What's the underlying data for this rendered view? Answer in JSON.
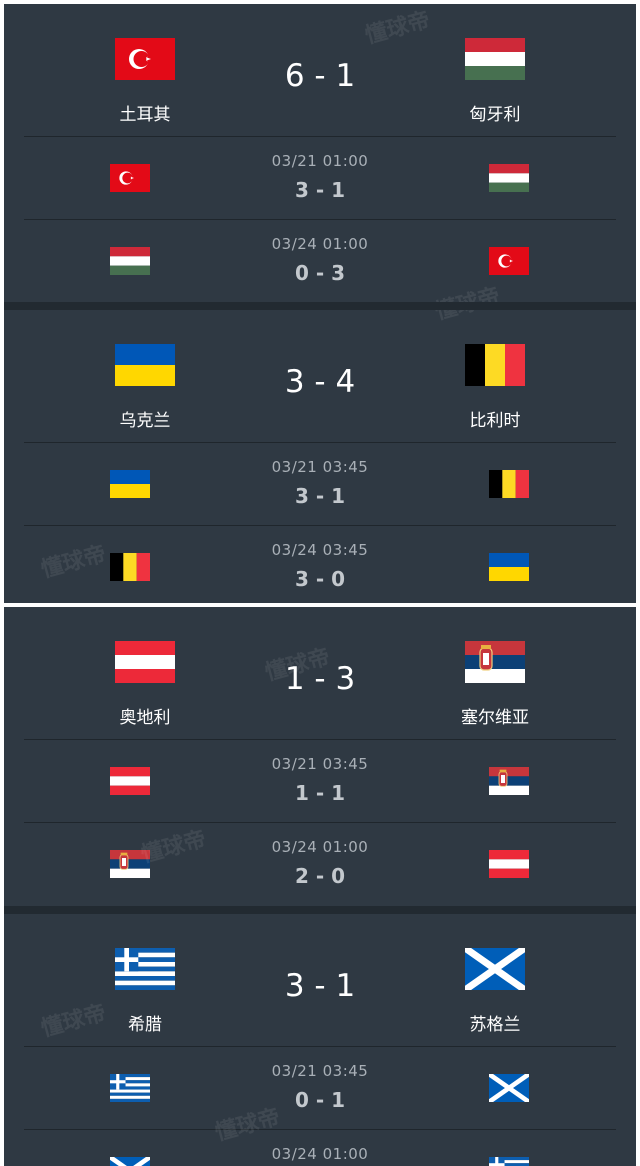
{
  "watermark": "懂球帝",
  "ties": [
    {
      "home": {
        "name": "土耳其",
        "flag": "turkey-flag"
      },
      "away": {
        "name": "匈牙利",
        "flag": "hungary-flag"
      },
      "aggregate": "6 - 1",
      "legs": [
        {
          "date": "03/21  01:00",
          "score": "3 - 1",
          "left_flag": "turkey-flag",
          "right_flag": "hungary-flag"
        },
        {
          "date": "03/24  01:00",
          "score": "0 - 3",
          "left_flag": "hungary-flag",
          "right_flag": "turkey-flag"
        }
      ]
    },
    {
      "home": {
        "name": "乌克兰",
        "flag": "ukraine-flag"
      },
      "away": {
        "name": "比利时",
        "flag": "belgium-flag"
      },
      "aggregate": "3 - 4",
      "legs": [
        {
          "date": "03/21  03:45",
          "score": "3 - 1",
          "left_flag": "ukraine-flag",
          "right_flag": "belgium-flag"
        },
        {
          "date": "03/24  03:45",
          "score": "3 - 0",
          "left_flag": "belgium-flag",
          "right_flag": "ukraine-flag"
        }
      ]
    },
    {
      "home": {
        "name": "奥地利",
        "flag": "austria-flag"
      },
      "away": {
        "name": "塞尔维亚",
        "flag": "serbia-flag"
      },
      "aggregate": "1 - 3",
      "legs": [
        {
          "date": "03/21  03:45",
          "score": "1 - 1",
          "left_flag": "austria-flag",
          "right_flag": "serbia-flag"
        },
        {
          "date": "03/24  01:00",
          "score": "2 - 0",
          "left_flag": "serbia-flag",
          "right_flag": "austria-flag"
        }
      ]
    },
    {
      "home": {
        "name": "希腊",
        "flag": "greece-flag"
      },
      "away": {
        "name": "苏格兰",
        "flag": "scotland-flag"
      },
      "aggregate": "3 - 1",
      "legs": [
        {
          "date": "03/21  03:45",
          "score": "0 - 1",
          "left_flag": "greece-flag",
          "right_flag": "scotland-flag"
        },
        {
          "date": "03/24  01:00",
          "score": "",
          "left_flag": "scotland-flag",
          "right_flag": "greece-flag"
        }
      ]
    }
  ]
}
